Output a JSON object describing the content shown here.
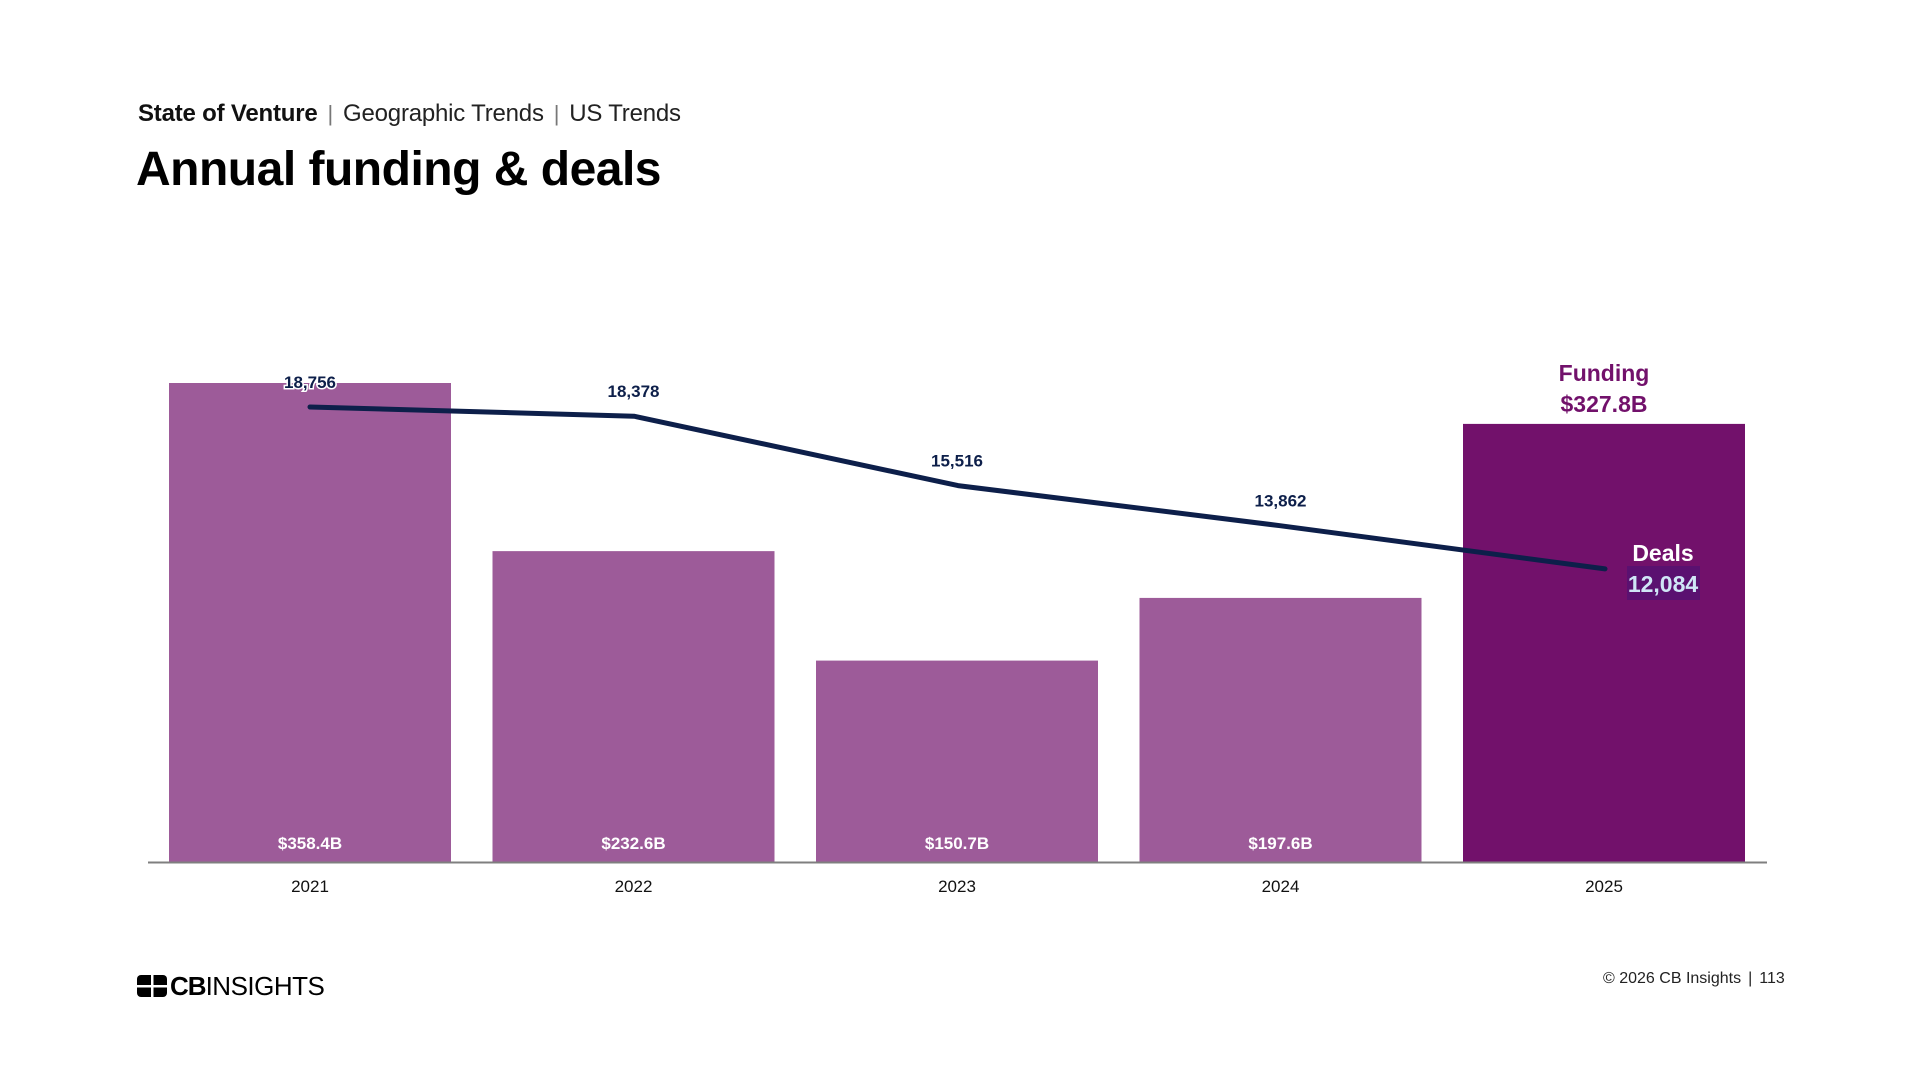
{
  "header": {
    "breadcrumb": [
      "State of Venture",
      "Geographic Trends",
      "US Trends"
    ],
    "separator": "|",
    "title": "Annual funding & deals"
  },
  "colors": {
    "bar": "#9d5b99",
    "bar_highlight": "#72116b",
    "line": "#0d1f4a",
    "funding_label": "#72116b",
    "axis": "#7f7f7f",
    "deals_value_bg": "#5a1170",
    "deals_value_text": "#cfe6f7"
  },
  "chart_data": {
    "type": "bar",
    "title": "Annual funding & deals",
    "categories": [
      "2021",
      "2022",
      "2023",
      "2024",
      "2025"
    ],
    "series": [
      {
        "name": "Funding",
        "type": "bar",
        "unit": "$B",
        "values": [
          358.4,
          232.6,
          150.7,
          197.6,
          327.8
        ],
        "labels": [
          "$358.4B",
          "$232.6B",
          "$150.7B",
          "$197.6B",
          "$327.8B"
        ]
      },
      {
        "name": "Deals",
        "type": "line",
        "values": [
          18756,
          18378,
          15516,
          13862,
          12084
        ],
        "labels": [
          "18,756",
          "18,378",
          "15,516",
          "13,862",
          "12,084"
        ]
      }
    ],
    "highlight_index": 4,
    "annotations": {
      "funding_title": "Funding",
      "funding_value": "$327.8B",
      "deals_title": "Deals",
      "deals_value": "12,084"
    },
    "funding_ylim": [
      0,
      358.4
    ],
    "deals_ylim": [
      0,
      18756
    ],
    "xlabel": "",
    "ylabel": "",
    "grid": false,
    "legend": "none"
  },
  "footer": {
    "logo_bold": "CB",
    "logo_rest": "INSIGHTS",
    "copyright": "© 2026 CB Insights",
    "separator": "|",
    "page_number": "113"
  }
}
